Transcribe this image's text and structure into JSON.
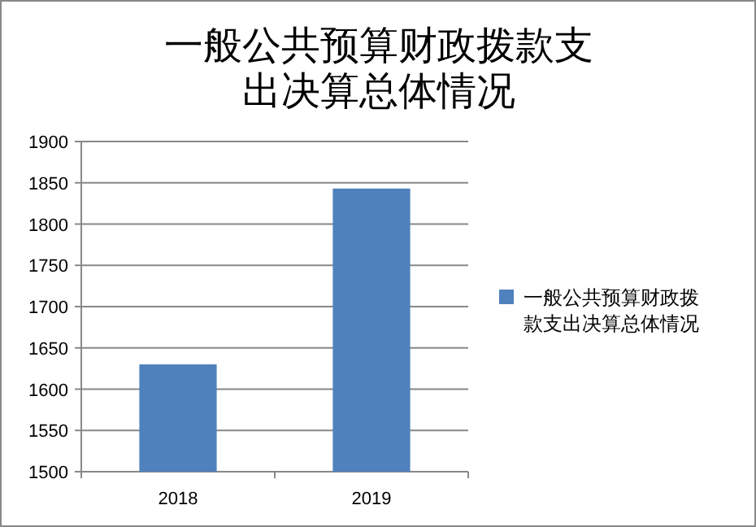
{
  "chart_data": {
    "type": "bar",
    "title": "一般公共预算财政拨款支出决算总体情况",
    "categories": [
      "2018",
      "2019"
    ],
    "series": [
      {
        "name": "一般公共预算财政拨款支出决算总体情况",
        "color": "#4f81bd",
        "values": [
          1630,
          1843
        ]
      }
    ],
    "ylim": [
      1500,
      1900
    ],
    "yticks": [
      1500,
      1550,
      1600,
      1650,
      1700,
      1750,
      1800,
      1850,
      1900
    ],
    "grid": "y",
    "legend": "right"
  }
}
